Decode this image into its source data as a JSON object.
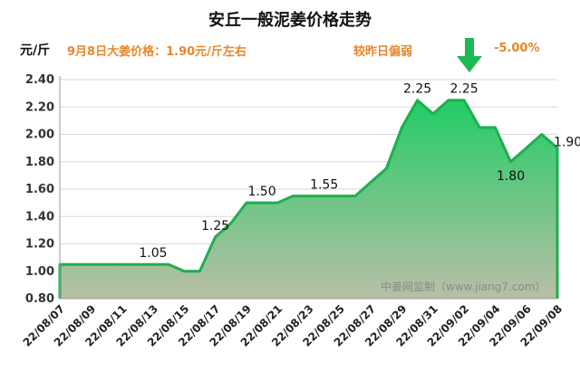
{
  "header": {
    "title": "安丘一般泥姜价格走势",
    "unit": "元/斤",
    "price_text": "9月8日大姜价格：1.90元/斤左右",
    "compare_text": "较昨日偏弱",
    "change_text": "-5.00%",
    "arrow_icon": "down-arrow-icon",
    "arrow_color": "#1db954"
  },
  "watermark": "中姜网监制（www.jiang7.com）",
  "colors": {
    "line": "#1fae4f",
    "fill_top": "#22cc66",
    "fill_bottom": "#b9bfa6",
    "accent_text": "#e8862a"
  },
  "chart_data": {
    "type": "area",
    "title": "安丘一般泥姜价格走势",
    "ylabel": "元/斤",
    "ylim": [
      0.8,
      2.4
    ],
    "yticks": [
      "0.80",
      "1.00",
      "1.20",
      "1.40",
      "1.60",
      "1.80",
      "2.00",
      "2.20",
      "2.40"
    ],
    "grid": true,
    "xtick_labels": [
      "22/08/07",
      "22/08/09",
      "22/08/11",
      "22/08/13",
      "22/08/15",
      "22/08/17",
      "22/08/19",
      "22/08/21",
      "22/08/23",
      "22/08/25",
      "22/08/27",
      "22/08/29",
      "22/08/31",
      "22/09/02",
      "22/09/04",
      "22/09/06",
      "22/09/08"
    ],
    "x": [
      "22/08/07",
      "22/08/08",
      "22/08/09",
      "22/08/10",
      "22/08/11",
      "22/08/12",
      "22/08/13",
      "22/08/14",
      "22/08/15",
      "22/08/16",
      "22/08/17",
      "22/08/18",
      "22/08/19",
      "22/08/20",
      "22/08/21",
      "22/08/22",
      "22/08/23",
      "22/08/24",
      "22/08/25",
      "22/08/26",
      "22/08/27",
      "22/08/28",
      "22/08/29",
      "22/08/30",
      "22/08/31",
      "22/09/01",
      "22/09/02",
      "22/09/03",
      "22/09/04",
      "22/09/05",
      "22/09/06",
      "22/09/07",
      "22/09/08"
    ],
    "values": [
      1.05,
      1.05,
      1.05,
      1.05,
      1.05,
      1.05,
      1.05,
      1.05,
      1.0,
      1.0,
      1.25,
      1.35,
      1.5,
      1.5,
      1.5,
      1.55,
      1.55,
      1.55,
      1.55,
      1.55,
      1.65,
      1.75,
      2.05,
      2.25,
      2.15,
      2.25,
      2.25,
      2.05,
      2.05,
      1.8,
      1.9,
      2.0,
      1.9
    ],
    "data_labels": [
      {
        "x": "22/08/13",
        "text": "1.05"
      },
      {
        "x": "22/08/17",
        "text": "1.25"
      },
      {
        "x": "22/08/20",
        "text": "1.50"
      },
      {
        "x": "22/08/24",
        "text": "1.55"
      },
      {
        "x": "22/08/30",
        "text": "2.25"
      },
      {
        "x": "22/09/02",
        "text": "2.25"
      },
      {
        "x": "22/09/05",
        "text": "1.80"
      },
      {
        "x": "22/09/08",
        "text": "1.90"
      }
    ]
  }
}
